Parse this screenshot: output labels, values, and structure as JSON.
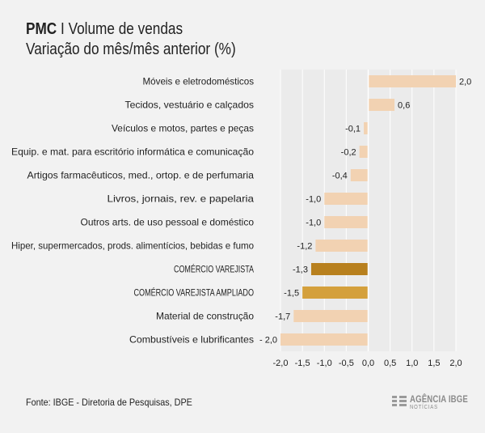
{
  "header": {
    "brand": "PMC",
    "separator": "I",
    "title": "Volume de vendas",
    "subtitle": "Variação do mês/mês anterior (%)"
  },
  "chart_data": {
    "type": "bar",
    "orientation": "horizontal",
    "title": "PMC I Volume de vendas",
    "subtitle": "Variação do mês/mês anterior (%)",
    "xlabel": "",
    "ylabel": "",
    "xlim": [
      -2.0,
      2.0
    ],
    "grid": true,
    "categories": [
      "Móveis e eletrodomésticos",
      "Tecidos, vestuário e calçados",
      "Veículos e motos, partes e peças",
      "Equip. e mat. para escritório informática e comunicação",
      "Artigos farmacêuticos, med., ortop. e de perfumaria",
      "Livros, jornais, rev. e papelaria",
      "Outros arts. de uso pessoal e doméstico",
      "Hiper, supermercados, prods. alimentícios, bebidas e fumo",
      "COMÉRCIO VAREJISTA",
      "COMÉRCIO VAREJISTA AMPLIADO",
      "Material de construção",
      "Combustíveis e lubrificantes"
    ],
    "values": [
      2.0,
      0.6,
      -0.1,
      -0.2,
      -0.4,
      -1.0,
      -1.0,
      -1.2,
      -1.3,
      -1.5,
      -1.7,
      -2.0
    ],
    "value_labels": [
      "2,0",
      "0,6",
      "-0,1",
      "-0,2",
      "-0,4",
      "-1,0",
      "-1,0",
      "-1,2",
      "-1,3",
      "-1,5",
      "-1,7",
      "- 2,0"
    ],
    "highlight": [
      false,
      false,
      false,
      false,
      false,
      false,
      false,
      false,
      true,
      true,
      false,
      false
    ],
    "x_ticks": [
      -2.0,
      -1.5,
      -1.0,
      -0.5,
      0.0,
      0.5,
      1.0,
      1.5,
      2.0
    ],
    "x_tick_labels": [
      "-2,0",
      "-1,5",
      "-1,0",
      "-0,5",
      "0,0",
      "0,5",
      "1,0",
      "1,5",
      "2,0"
    ],
    "colors": {
      "bar": "#f2d2b2",
      "highlight_total": "#b8801e",
      "highlight_ampliado": "#d4a03c",
      "grid": "#ffffff",
      "text": "#222222"
    }
  },
  "footer": {
    "source": "Fonte: IBGE - Diretoria de Pesquisas, DPE"
  },
  "logo": {
    "name": "AGÊNCIA IBGE",
    "sub": "NOTÍCIAS"
  }
}
